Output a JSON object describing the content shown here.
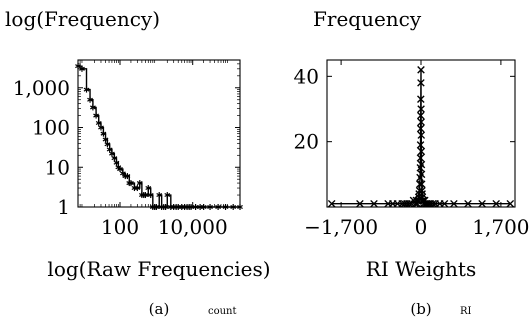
{
  "chart_data": [
    {
      "type": "line",
      "marker": "asterisk",
      "ylabel": "log(Frequency)",
      "xlabel": "log(Raw Frequencies)",
      "x_scale": "log",
      "y_scale": "log",
      "xlim": [
        7,
        200000
      ],
      "ylim": [
        1,
        5000
      ],
      "x_ticks": [
        100,
        10000
      ],
      "x_tick_labels": [
        "100",
        "10,000"
      ],
      "y_ticks": [
        1,
        10,
        100,
        1000
      ],
      "y_tick_labels": [
        "1",
        "10",
        "100",
        "1,000"
      ],
      "grid": false,
      "caption_label": "(a)",
      "caption_sub": "count",
      "series": [
        {
          "x": [
            7,
            9,
            12,
            15,
            18,
            22,
            26,
            30,
            35,
            40,
            45,
            52,
            60,
            70,
            80,
            90,
            100,
            120,
            140,
            160,
            180,
            200,
            250,
            300,
            350,
            400,
            450,
            500,
            600,
            700,
            800,
            900,
            1000,
            1200,
            1400,
            1600,
            1800,
            2000,
            2500,
            3000,
            3500,
            4000,
            5000,
            6000,
            7000,
            8000,
            9000,
            12000,
            16000,
            20000,
            30000,
            50000,
            80000,
            130000,
            200000
          ],
          "y": [
            3500,
            3000,
            900,
            500,
            320,
            200,
            130,
            100,
            70,
            50,
            38,
            28,
            22,
            17,
            13,
            10,
            9,
            7,
            6,
            6,
            4,
            4,
            3,
            3,
            4,
            2,
            2,
            2,
            3,
            2,
            1,
            1,
            1,
            2,
            1,
            1,
            1,
            2,
            1,
            1,
            1,
            1,
            1,
            1,
            1,
            1,
            1,
            1,
            1,
            1,
            1,
            1,
            1,
            1,
            1
          ]
        }
      ]
    },
    {
      "type": "line",
      "marker": "x",
      "ylabel": "Frequency",
      "xlabel": "RI Weights",
      "xlim": [
        -2000,
        2000
      ],
      "ylim": [
        0,
        45
      ],
      "x_ticks": [
        -1700,
        0,
        1700
      ],
      "x_tick_labels": [
        "−1,700",
        "0",
        "1,700"
      ],
      "y_ticks": [
        20,
        40
      ],
      "y_tick_labels": [
        "20",
        "40"
      ],
      "grid": false,
      "caption_label": "(b)",
      "caption_sub": "RI",
      "series": [
        {
          "x": [
            -1900,
            -1300,
            -1000,
            -700,
            -600,
            -500,
            -400,
            -350,
            -300,
            -250,
            -200,
            -160,
            -120,
            -100,
            -80,
            -60,
            -50,
            -40,
            -30,
            -25,
            -20,
            -15,
            -12,
            -10,
            -8,
            -6,
            -4,
            -2,
            0,
            2,
            4,
            6,
            8,
            10,
            12,
            15,
            20,
            25,
            30,
            40,
            50,
            60,
            80,
            100,
            120,
            160,
            200,
            250,
            300,
            400,
            500,
            700,
            1000,
            1300,
            1600,
            1900
          ],
          "y": [
            1,
            1,
            1,
            1,
            1,
            1,
            1,
            1,
            1,
            1,
            1,
            2,
            1,
            2,
            1,
            2,
            3,
            4,
            5,
            7,
            9,
            12,
            15,
            19,
            24,
            28,
            33,
            38,
            42,
            30,
            26,
            22,
            17,
            13,
            10,
            7,
            5,
            4,
            3,
            2,
            2,
            1,
            2,
            1,
            1,
            1,
            1,
            1,
            1,
            1,
            1,
            1,
            1,
            1,
            1,
            1
          ]
        }
      ]
    }
  ]
}
